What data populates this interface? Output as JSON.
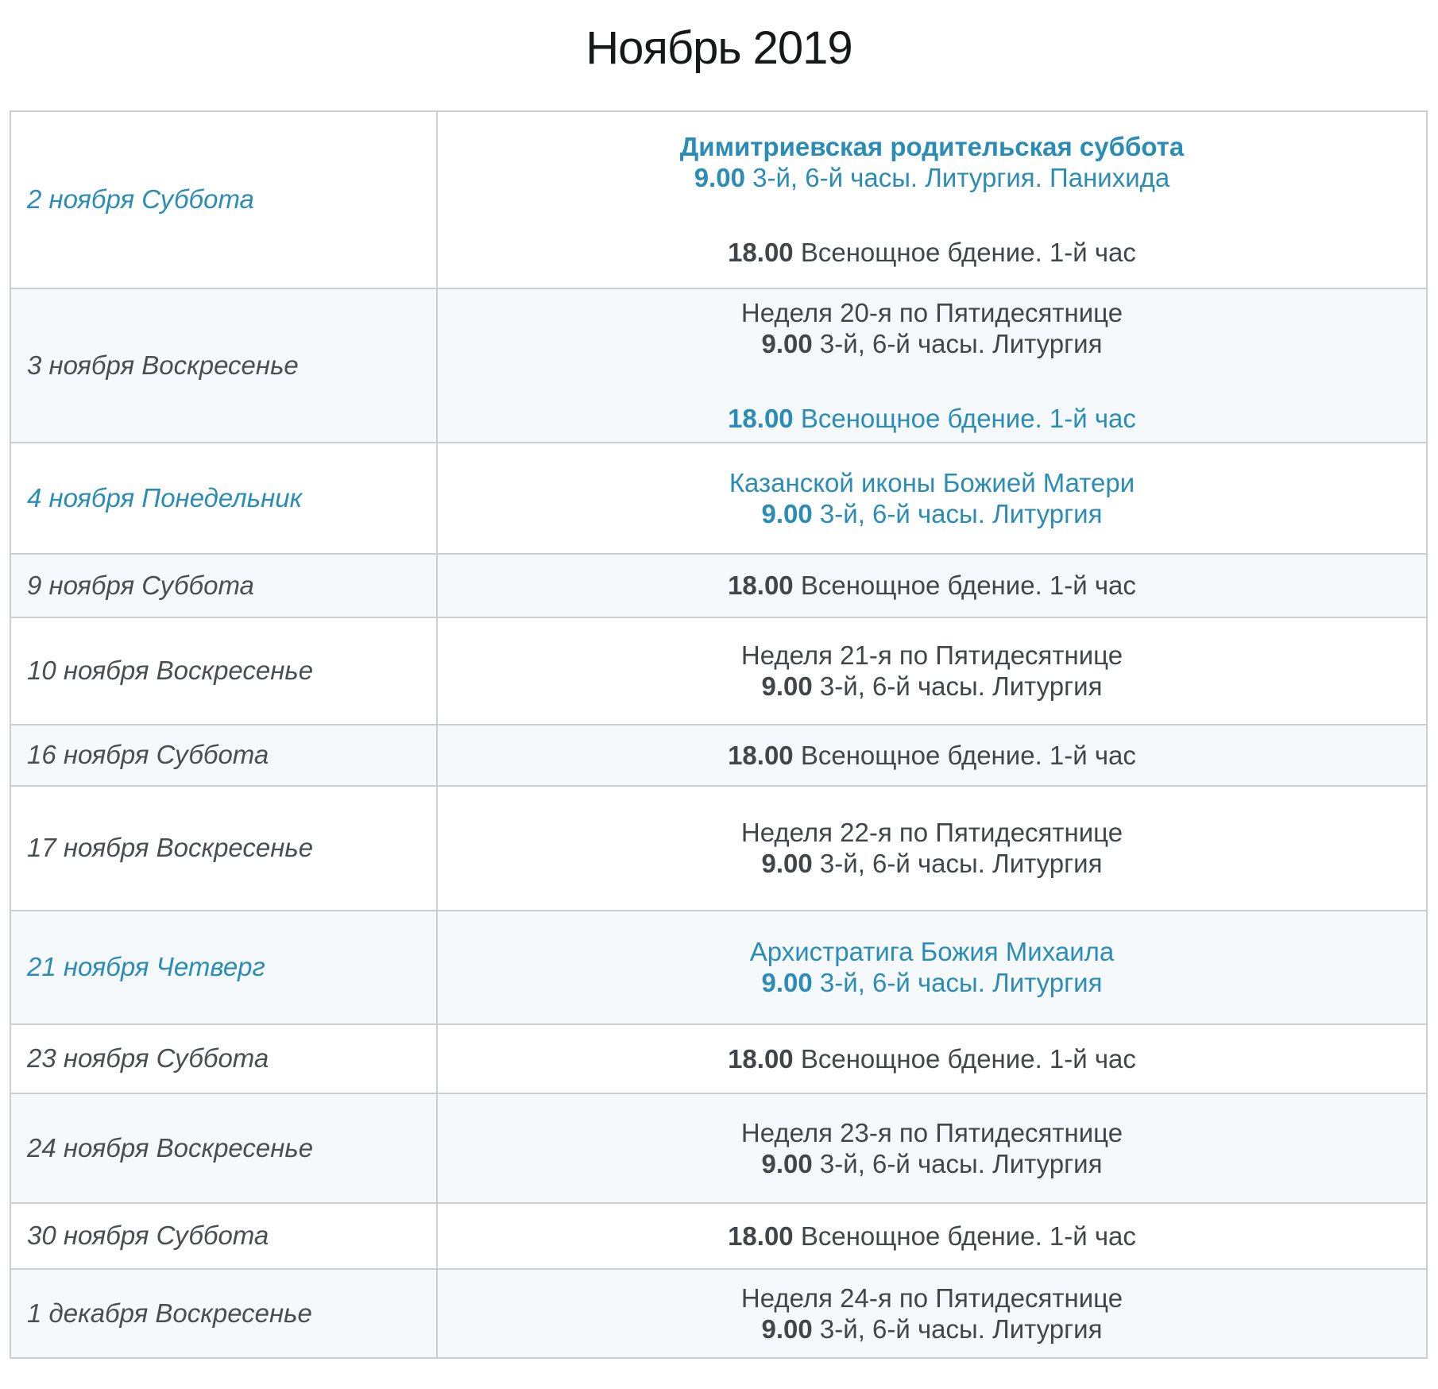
{
  "page_title": "Ноябрь 2019",
  "colors": {
    "accent": "#2b8db6",
    "text": "#42464b",
    "alt_row_bg": "#f6f9fc",
    "border": "#cccfd2",
    "title": "#17181a"
  },
  "table": {
    "rows": [
      {
        "date": "2 ноября Суббота",
        "date_accent": true,
        "blocks": [
          {
            "accent": true,
            "lines": [
              {
                "title": "Димитриевская родительская суббота"
              },
              {
                "time": "9.00",
                "text": "3-й, 6-й часы. Литургия. Панихида"
              }
            ]
          },
          {
            "accent": false,
            "lines": [
              {
                "time": "18.00",
                "text": "Всенощное бдение. 1-й час"
              }
            ]
          }
        ]
      },
      {
        "date": "3 ноября Воскресенье",
        "date_accent": false,
        "blocks": [
          {
            "accent": false,
            "lines": [
              {
                "text": "Неделя 20-я по Пятидесятнице"
              },
              {
                "time": "9.00",
                "text": "3-й, 6-й часы. Литургия"
              }
            ]
          },
          {
            "accent": true,
            "lines": [
              {
                "time": "18.00",
                "text": "Всенощное бдение. 1-й час"
              }
            ]
          }
        ]
      },
      {
        "date": "4 ноября Понедельник",
        "date_accent": true,
        "blocks": [
          {
            "accent": true,
            "lines": [
              {
                "text": "Казанской иконы Божией Матери"
              },
              {
                "time": "9.00",
                "text": "3-й, 6-й часы. Литургия"
              }
            ]
          }
        ]
      },
      {
        "date": "9 ноября Суббота",
        "date_accent": false,
        "blocks": [
          {
            "accent": false,
            "lines": [
              {
                "time": "18.00",
                "text": "Всенощное бдение. 1-й час"
              }
            ]
          }
        ]
      },
      {
        "date": "10 ноября Воскресенье",
        "date_accent": false,
        "blocks": [
          {
            "accent": false,
            "lines": [
              {
                "text": "Неделя 21-я по Пятидесятнице"
              },
              {
                "time": "9.00",
                "text": "3-й, 6-й часы. Литургия"
              }
            ]
          }
        ]
      },
      {
        "date": "16 ноября Суббота",
        "date_accent": false,
        "blocks": [
          {
            "accent": false,
            "lines": [
              {
                "time": "18.00",
                "text": "Всенощное бдение. 1-й час"
              }
            ]
          }
        ]
      },
      {
        "date": "17 ноября Воскресенье",
        "date_accent": false,
        "blocks": [
          {
            "accent": false,
            "lines": [
              {
                "text": "Неделя 22-я по Пятидесятнице"
              },
              {
                "time": "9.00",
                "text": "3-й, 6-й часы. Литургия"
              }
            ]
          }
        ]
      },
      {
        "date": "21 ноября Четверг",
        "date_accent": true,
        "blocks": [
          {
            "accent": true,
            "lines": [
              {
                "text": "Архистратига Божия Михаила"
              },
              {
                "time": "9.00",
                "text": "3-й, 6-й часы. Литургия"
              }
            ]
          }
        ]
      },
      {
        "date": "23 ноября Суббота",
        "date_accent": false,
        "blocks": [
          {
            "accent": false,
            "lines": [
              {
                "time": "18.00",
                "text": "Всенощное бдение. 1-й час"
              }
            ]
          }
        ]
      },
      {
        "date": "24 ноября Воскресенье",
        "date_accent": false,
        "blocks": [
          {
            "accent": false,
            "lines": [
              {
                "text": "Неделя 23-я по Пятидесятнице"
              },
              {
                "time": "9.00",
                "text": "3-й, 6-й часы. Литургия"
              }
            ]
          }
        ]
      },
      {
        "date": "30 ноября Суббота",
        "date_accent": false,
        "blocks": [
          {
            "accent": false,
            "lines": [
              {
                "time": "18.00",
                "text": "Всенощное бдение. 1-й час"
              }
            ]
          }
        ]
      },
      {
        "date": "1 декабря Воскресенье",
        "date_accent": false,
        "blocks": [
          {
            "accent": false,
            "lines": [
              {
                "text": "Неделя 24-я по Пятидесятнице"
              },
              {
                "time": "9.00",
                "text": "3-й, 6-й часы. Литургия"
              }
            ]
          }
        ]
      }
    ]
  }
}
